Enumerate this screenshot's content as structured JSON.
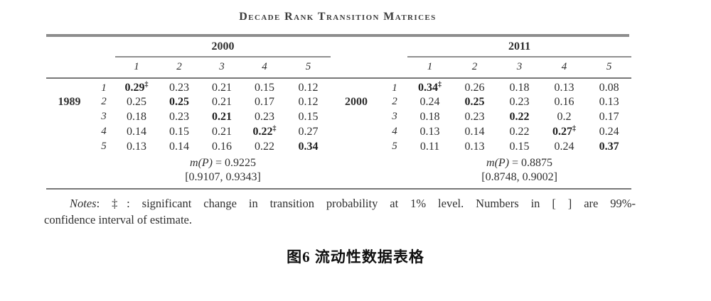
{
  "title": "Decade Rank Transition Matrices",
  "symbols": {
    "dagger": "‡"
  },
  "colors": {
    "text": "#2f2f2f",
    "rule": "#8a8a8a",
    "caption": "#101010"
  },
  "matrices": [
    {
      "year_col": "2000",
      "year_row": "1989",
      "cols": [
        "1",
        "2",
        "3",
        "4",
        "5"
      ],
      "rows": [
        {
          "label": "1",
          "cells": [
            {
              "v": "0.29",
              "bold": true,
              "dag": true
            },
            {
              "v": "0.23"
            },
            {
              "v": "0.21"
            },
            {
              "v": "0.15"
            },
            {
              "v": "0.12"
            }
          ]
        },
        {
          "label": "2",
          "cells": [
            {
              "v": "0.25"
            },
            {
              "v": "0.25",
              "bold": true
            },
            {
              "v": "0.21"
            },
            {
              "v": "0.17"
            },
            {
              "v": "0.12"
            }
          ]
        },
        {
          "label": "3",
          "cells": [
            {
              "v": "0.18"
            },
            {
              "v": "0.23"
            },
            {
              "v": "0.21",
              "bold": true
            },
            {
              "v": "0.23"
            },
            {
              "v": "0.15"
            }
          ]
        },
        {
          "label": "4",
          "cells": [
            {
              "v": "0.14"
            },
            {
              "v": "0.15"
            },
            {
              "v": "0.21"
            },
            {
              "v": "0.22",
              "bold": true,
              "dag": true
            },
            {
              "v": "0.27"
            }
          ]
        },
        {
          "label": "5",
          "cells": [
            {
              "v": "0.13"
            },
            {
              "v": "0.14"
            },
            {
              "v": "0.16"
            },
            {
              "v": "0.22"
            },
            {
              "v": "0.34",
              "bold": true
            }
          ]
        }
      ],
      "m_func": "m(P)",
      "m_rest": " = 0.9225",
      "ci": "[0.9107, 0.9343]"
    },
    {
      "year_col": "2011",
      "year_row": "2000",
      "cols": [
        "1",
        "2",
        "3",
        "4",
        "5"
      ],
      "rows": [
        {
          "label": "1",
          "cells": [
            {
              "v": "0.34",
              "bold": true,
              "dag": true
            },
            {
              "v": "0.26"
            },
            {
              "v": "0.18"
            },
            {
              "v": "0.13"
            },
            {
              "v": "0.08"
            }
          ]
        },
        {
          "label": "2",
          "cells": [
            {
              "v": "0.24"
            },
            {
              "v": "0.25",
              "bold": true
            },
            {
              "v": "0.23"
            },
            {
              "v": "0.16"
            },
            {
              "v": "0.13"
            }
          ]
        },
        {
          "label": "3",
          "cells": [
            {
              "v": "0.18"
            },
            {
              "v": "0.23"
            },
            {
              "v": "0.22",
              "bold": true
            },
            {
              "v": "0.2"
            },
            {
              "v": "0.17"
            }
          ]
        },
        {
          "label": "4",
          "cells": [
            {
              "v": "0.13"
            },
            {
              "v": "0.14"
            },
            {
              "v": "0.22"
            },
            {
              "v": "0.27",
              "bold": true,
              "dag": true
            },
            {
              "v": "0.24"
            }
          ]
        },
        {
          "label": "5",
          "cells": [
            {
              "v": "0.11"
            },
            {
              "v": "0.13"
            },
            {
              "v": "0.15"
            },
            {
              "v": "0.24"
            },
            {
              "v": "0.37",
              "bold": true
            }
          ]
        }
      ],
      "m_func": "m(P)",
      "m_rest": " = 0.8875",
      "ci": "[0.8748, 0.9002]"
    }
  ],
  "notes": {
    "label": "Notes",
    "line1_rest": ": ‡: significant change in transition probability at 1% level. Numbers in [ ] are 99%-",
    "line2": "confidence interval of estimate."
  },
  "caption": "图6 流动性数据表格"
}
